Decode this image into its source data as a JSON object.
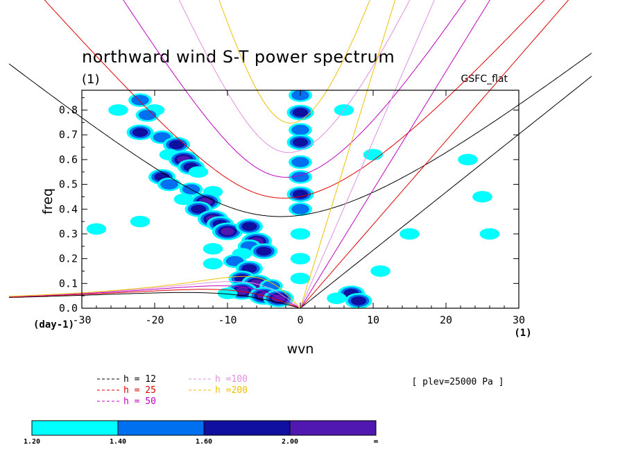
{
  "chart_data": {
    "type": "heatmap",
    "title": "northward wind S-T power spectrum",
    "subtitle_units": "(1)",
    "dataset_label": "GSFC_flat",
    "xlabel": "wvn",
    "ylabel": "freq",
    "x_units_label": "(1)",
    "y_units_label": "(day-1)",
    "xlim": [
      -30,
      30
    ],
    "ylim": [
      0,
      0.88
    ],
    "xticks": [
      -30,
      -20,
      -10,
      0,
      10,
      20,
      30
    ],
    "xtick_labels": [
      "-30",
      "-20",
      "-10",
      "0",
      "10",
      "20",
      "30"
    ],
    "yticks": [
      0,
      0.1,
      0.2,
      0.3,
      0.4,
      0.5,
      0.6,
      0.7,
      0.8
    ],
    "ytick_labels": [
      "0.0",
      "0.1",
      "0.2",
      "0.3",
      "0.4",
      "0.5",
      "0.6",
      "0.7",
      "0.8"
    ],
    "plev_label": "[ plev=25000 Pa ]",
    "equivalent_depths": [
      {
        "label": "h = 12",
        "h": 12,
        "color": "#000000"
      },
      {
        "label": "h = 25",
        "h": 25,
        "color": "#e00000"
      },
      {
        "label": "h = 50",
        "h": 50,
        "color": "#c000c0"
      },
      {
        "label": "h =100",
        "h": 100,
        "color": "#e090e0"
      },
      {
        "label": "h =200",
        "h": 200,
        "color": "#f0c000"
      }
    ],
    "colorbar": {
      "levels": [
        "1.20",
        "1.40",
        "1.60",
        "2.00",
        "∞"
      ],
      "colors": [
        "#00ffff",
        "#0070f0",
        "#1010a0",
        "#5018b0"
      ]
    },
    "power_blobs": [
      {
        "x": -22,
        "y": 0.84,
        "lvl": 1
      },
      {
        "x": -20,
        "y": 0.8,
        "lvl": 0
      },
      {
        "x": -21,
        "y": 0.78,
        "lvl": 1
      },
      {
        "x": -22,
        "y": 0.71,
        "lvl": 2
      },
      {
        "x": -19,
        "y": 0.69,
        "lvl": 1
      },
      {
        "x": -17,
        "y": 0.66,
        "lvl": 2
      },
      {
        "x": -18,
        "y": 0.62,
        "lvl": 0
      },
      {
        "x": -16,
        "y": 0.6,
        "lvl": 3
      },
      {
        "x": -15,
        "y": 0.57,
        "lvl": 2
      },
      {
        "x": -14,
        "y": 0.55,
        "lvl": 0
      },
      {
        "x": -19,
        "y": 0.53,
        "lvl": 2
      },
      {
        "x": -18,
        "y": 0.5,
        "lvl": 1
      },
      {
        "x": -15,
        "y": 0.48,
        "lvl": 1
      },
      {
        "x": -12,
        "y": 0.47,
        "lvl": 0
      },
      {
        "x": -13,
        "y": 0.43,
        "lvl": 3
      },
      {
        "x": -14,
        "y": 0.4,
        "lvl": 2
      },
      {
        "x": -12,
        "y": 0.36,
        "lvl": 3
      },
      {
        "x": -11,
        "y": 0.34,
        "lvl": 2
      },
      {
        "x": -10,
        "y": 0.31,
        "lvl": 3
      },
      {
        "x": -7,
        "y": 0.33,
        "lvl": 2
      },
      {
        "x": -6,
        "y": 0.27,
        "lvl": 3
      },
      {
        "x": -7,
        "y": 0.25,
        "lvl": 1
      },
      {
        "x": -8,
        "y": 0.22,
        "lvl": 0
      },
      {
        "x": -5,
        "y": 0.23,
        "lvl": 2
      },
      {
        "x": -9,
        "y": 0.19,
        "lvl": 1
      },
      {
        "x": -7,
        "y": 0.16,
        "lvl": 2
      },
      {
        "x": -12,
        "y": 0.18,
        "lvl": 0
      },
      {
        "x": -8,
        "y": 0.12,
        "lvl": 2
      },
      {
        "x": -6,
        "y": 0.1,
        "lvl": 3
      },
      {
        "x": -4,
        "y": 0.09,
        "lvl": 1
      },
      {
        "x": -8,
        "y": 0.07,
        "lvl": 3
      },
      {
        "x": -5,
        "y": 0.05,
        "lvl": 3
      },
      {
        "x": -3,
        "y": 0.04,
        "lvl": 3
      },
      {
        "x": -10,
        "y": 0.06,
        "lvl": 0
      },
      {
        "x": -12,
        "y": 0.24,
        "lvl": 0
      },
      {
        "x": -16,
        "y": 0.44,
        "lvl": 0
      },
      {
        "x": 0,
        "y": 0.86,
        "lvl": 1
      },
      {
        "x": 0,
        "y": 0.79,
        "lvl": 2
      },
      {
        "x": 0,
        "y": 0.72,
        "lvl": 1
      },
      {
        "x": 0,
        "y": 0.67,
        "lvl": 2
      },
      {
        "x": 0,
        "y": 0.59,
        "lvl": 1
      },
      {
        "x": 0,
        "y": 0.53,
        "lvl": 1
      },
      {
        "x": 0,
        "y": 0.46,
        "lvl": 2
      },
      {
        "x": 0,
        "y": 0.4,
        "lvl": 1
      },
      {
        "x": 0,
        "y": 0.3,
        "lvl": 0
      },
      {
        "x": 0,
        "y": 0.2,
        "lvl": 0
      },
      {
        "x": 0,
        "y": 0.12,
        "lvl": 0
      },
      {
        "x": 7,
        "y": 0.06,
        "lvl": 2
      },
      {
        "x": 8,
        "y": 0.03,
        "lvl": 2
      },
      {
        "x": 5,
        "y": 0.04,
        "lvl": 0
      },
      {
        "x": -25,
        "y": 0.8,
        "lvl": 0
      },
      {
        "x": 11,
        "y": 0.15,
        "lvl": 0
      },
      {
        "x": 15,
        "y": 0.3,
        "lvl": 0
      },
      {
        "x": 23,
        "y": 0.6,
        "lvl": 0
      },
      {
        "x": 25,
        "y": 0.45,
        "lvl": 0
      },
      {
        "x": 26,
        "y": 0.3,
        "lvl": 0
      },
      {
        "x": -28,
        "y": 0.32,
        "lvl": 0
      },
      {
        "x": -22,
        "y": 0.35,
        "lvl": 0
      },
      {
        "x": 6,
        "y": 0.8,
        "lvl": 0
      },
      {
        "x": 10,
        "y": 0.62,
        "lvl": 0
      }
    ]
  }
}
